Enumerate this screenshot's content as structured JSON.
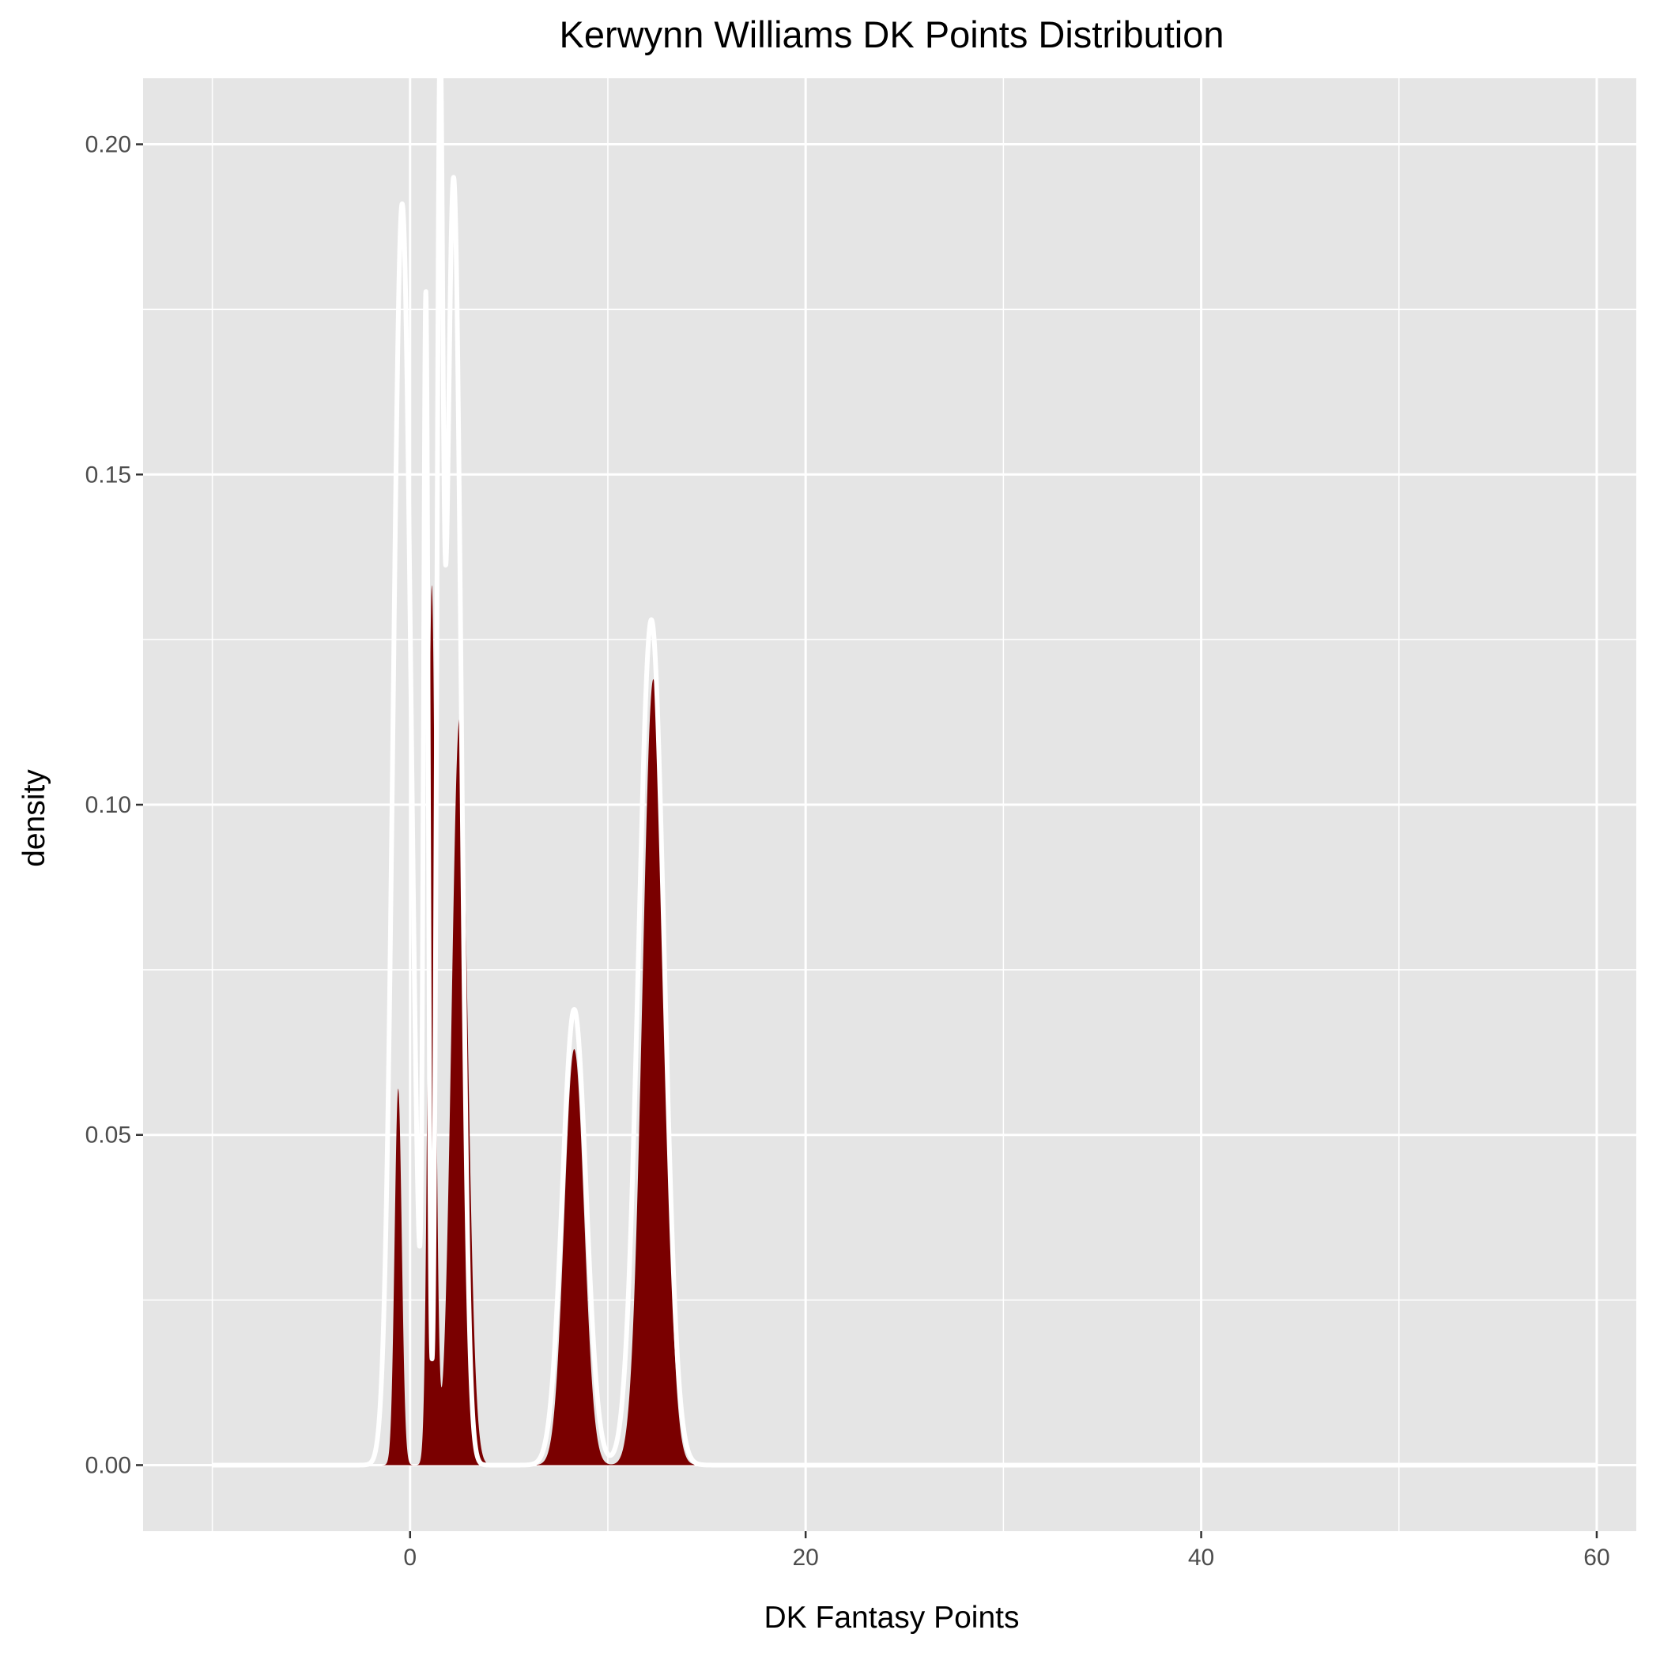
{
  "chart_data": {
    "type": "area",
    "title": "Kerwynn Williams DK Points Distribution",
    "xlabel": "DK Fantasy Points",
    "ylabel": "density",
    "xlim": [
      -13.5,
      62
    ],
    "ylim": [
      -0.01,
      0.21
    ],
    "x_ticks": [
      0,
      20,
      40,
      60
    ],
    "x_tick_labels": [
      "0",
      "20",
      "40",
      "60"
    ],
    "x_minor_ticks": [
      -10,
      10,
      30,
      50
    ],
    "y_ticks": [
      0,
      0.05,
      0.1,
      0.15,
      0.2
    ],
    "y_tick_labels": [
      "0.00",
      "0.05",
      "0.10",
      "0.15",
      "0.20"
    ],
    "y_minor_ticks": [
      0.025,
      0.075,
      0.125,
      0.175
    ],
    "grid": true,
    "legend": "none",
    "colors": {
      "panel": "#e5e5e5",
      "grid": "#ffffff",
      "fill": "#7a0000",
      "outline": "#ffffff",
      "tick": "#333333"
    },
    "series": [
      {
        "role": "filled density",
        "x_range": [
          -10,
          60
        ],
        "components": [
          {
            "center": -0.6,
            "sd": 0.18,
            "peak": 0.057
          },
          {
            "center": 1.1,
            "sd": 0.18,
            "peak": 0.133
          },
          {
            "center": 2.5,
            "sd": 0.4,
            "peak": 0.113
          },
          {
            "center": 8.3,
            "sd": 0.5,
            "peak": 0.063
          },
          {
            "center": 12.3,
            "sd": 0.55,
            "peak": 0.119
          }
        ]
      },
      {
        "role": "outline density",
        "x_range": [
          -10,
          60
        ],
        "components": [
          {
            "center": -0.4,
            "sd": 0.45,
            "peak": 0.191
          },
          {
            "center": 0.8,
            "sd": 0.12,
            "peak": 0.172
          },
          {
            "center": 1.5,
            "sd": 0.15,
            "peak": 0.179
          },
          {
            "center": 2.2,
            "sd": 0.38,
            "peak": 0.195
          },
          {
            "center": 8.3,
            "sd": 0.6,
            "peak": 0.069
          },
          {
            "center": 12.2,
            "sd": 0.65,
            "peak": 0.128
          }
        ]
      }
    ]
  }
}
